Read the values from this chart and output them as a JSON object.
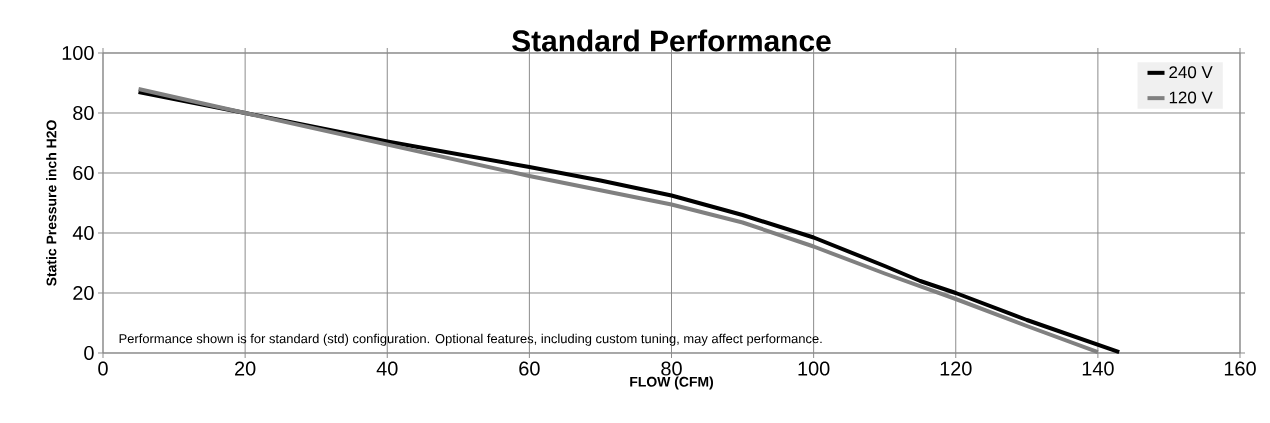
{
  "chart_data": {
    "type": "line",
    "title": "Standard Performance",
    "xlabel": "FLOW (CFM)",
    "ylabel": "Static Pressure inch H2O",
    "annotations": [
      "Performance shown is for standard (std) configuration. Optional features, including custom tuning, may affect performance."
    ],
    "series": [
      {
        "name": "240 V",
        "color": "#000000",
        "x": [
          5,
          20,
          40,
          60,
          70,
          80,
          90,
          100,
          110,
          115,
          120,
          130,
          143
        ],
        "values": [
          87,
          80,
          70.5,
          62,
          57.5,
          52.5,
          46,
          38.5,
          29,
          24,
          20,
          11,
          0.3
        ]
      },
      {
        "name": "120 V",
        "color": "#808080",
        "x": [
          5,
          20,
          40,
          60,
          80,
          90,
          100,
          110,
          120,
          130,
          140
        ],
        "values": [
          88,
          80,
          69.5,
          59,
          49.5,
          43.5,
          35.5,
          26.5,
          18,
          9,
          0.3
        ]
      }
    ],
    "xlim": [
      0,
      160
    ],
    "xticks": [
      0,
      20,
      40,
      60,
      80,
      100,
      120,
      140,
      160
    ],
    "ylim": [
      0,
      100
    ],
    "yticks": [
      0,
      20,
      40,
      60,
      80,
      100
    ],
    "grid": true,
    "legend": "top right",
    "marker": "none",
    "line_style": "solid"
  }
}
